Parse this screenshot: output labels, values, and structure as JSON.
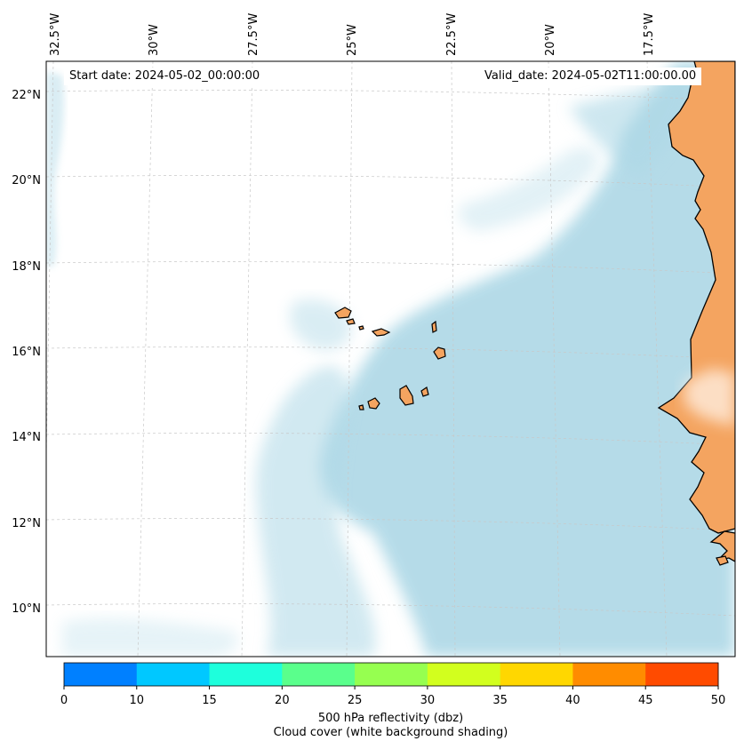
{
  "map": {
    "start_date": "Start date: 2024-05-02_00:00:00",
    "valid_date": "Valid_date: 2024-05-02T11:00:00.00",
    "lon_labels": [
      "32.5°W",
      "30°W",
      "27.5°W",
      "25°W",
      "22.5°W",
      "20°W",
      "17.5°W"
    ],
    "lat_labels": [
      "22°N",
      "20°N",
      "18°N",
      "16°N",
      "14°N",
      "12°N",
      "10°N"
    ],
    "land_color": "#f4a460",
    "cloud_color": "#add8e6",
    "coastline_color": "#000000",
    "gridlines": true
  },
  "colorbar": {
    "ticks": [
      "0",
      "10",
      "15",
      "20",
      "25",
      "30",
      "35",
      "40",
      "45",
      "50"
    ],
    "colors": [
      "#0080ff",
      "#00c8ff",
      "#1effdc",
      "#5aff8c",
      "#96ff50",
      "#d2ff1e",
      "#ffd700",
      "#ff8c00",
      "#ff4b00"
    ],
    "label_line1": "500 hPa reflectivity (dbz)",
    "label_line2": "Cloud cover (white background shading)"
  }
}
